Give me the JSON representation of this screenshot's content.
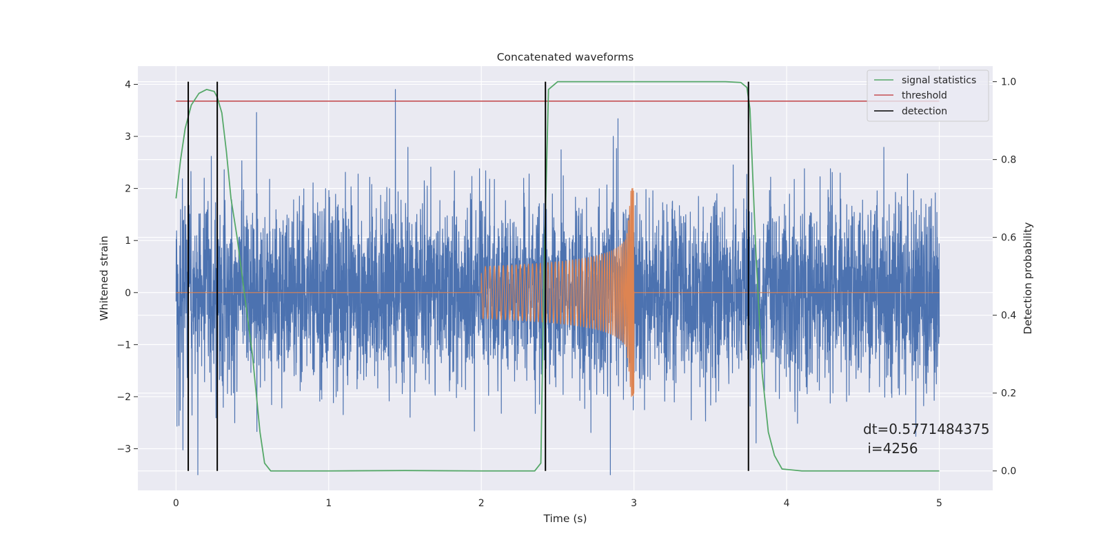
{
  "chart_data": {
    "type": "line",
    "title": "Concatenated waveforms",
    "xlabel": "Time (s)",
    "ylabel": "Whitened strain",
    "y2label": "Detection probability",
    "xlim": [
      -0.25,
      5.35
    ],
    "ylim": [
      -3.8,
      4.35
    ],
    "y2lim": [
      -0.05,
      1.04
    ],
    "x_ticks": [
      0,
      1,
      2,
      3,
      4,
      5
    ],
    "y_ticks": [
      -3,
      -2,
      -1,
      0,
      1,
      2,
      3,
      4
    ],
    "y2_ticks": [
      0.0,
      0.2,
      0.4,
      0.6,
      0.8,
      1.0
    ],
    "x_tick_labels": [
      "0",
      "1",
      "2",
      "3",
      "4",
      "5"
    ],
    "y_tick_labels": [
      "−3",
      "−2",
      "−1",
      "0",
      "1",
      "2",
      "3",
      "4"
    ],
    "y2_tick_labels": [
      "0.0",
      "0.2",
      "0.4",
      "0.6",
      "0.8",
      "1.0"
    ],
    "grid": true,
    "legend_position": "top-right",
    "legend": [
      {
        "name": "signal statistics",
        "color": "#55a868"
      },
      {
        "name": "threshold",
        "color": "#c44e52"
      },
      {
        "name": "detection",
        "color": "#000000"
      }
    ],
    "annotation": {
      "dt": "dt=0.5771484375",
      "i": " i=4256"
    },
    "series": [
      {
        "key": "noise",
        "color": "#4c72b0",
        "x_range": [
          0,
          5
        ],
        "typical_amplitude": 1.6,
        "y_min": -3.5,
        "y_max": 4.0
      },
      {
        "key": "waveform",
        "color": "#dd8452",
        "x_range": [
          0,
          5
        ],
        "chirp_start": 2.0,
        "chirp_end": 3.0,
        "start_amplitude": 0.5,
        "peak_amplitude": 2.0
      },
      {
        "name": "signal statistics",
        "color": "#55a868",
        "axis": "right",
        "points": [
          [
            0.0,
            0.7
          ],
          [
            0.03,
            0.8
          ],
          [
            0.06,
            0.88
          ],
          [
            0.1,
            0.94
          ],
          [
            0.15,
            0.97
          ],
          [
            0.2,
            0.98
          ],
          [
            0.25,
            0.975
          ],
          [
            0.27,
            0.96
          ],
          [
            0.3,
            0.92
          ],
          [
            0.33,
            0.82
          ],
          [
            0.36,
            0.7
          ],
          [
            0.4,
            0.6
          ],
          [
            0.45,
            0.45
          ],
          [
            0.5,
            0.3
          ],
          [
            0.55,
            0.1
          ],
          [
            0.58,
            0.02
          ],
          [
            0.62,
            0.0
          ],
          [
            1.0,
            0.0
          ],
          [
            1.5,
            0.001
          ],
          [
            2.0,
            0.0
          ],
          [
            2.35,
            0.0
          ],
          [
            2.39,
            0.02
          ],
          [
            2.41,
            0.5
          ],
          [
            2.44,
            0.98
          ],
          [
            2.5,
            1.0
          ],
          [
            3.0,
            1.0
          ],
          [
            3.6,
            1.0
          ],
          [
            3.7,
            0.998
          ],
          [
            3.74,
            0.985
          ],
          [
            3.76,
            0.93
          ],
          [
            3.8,
            0.55
          ],
          [
            3.84,
            0.25
          ],
          [
            3.88,
            0.1
          ],
          [
            3.92,
            0.04
          ],
          [
            3.97,
            0.005
          ],
          [
            4.1,
            0.0
          ],
          [
            5.0,
            0.0
          ]
        ]
      },
      {
        "name": "threshold",
        "color": "#c44e52",
        "axis": "right",
        "x": [
          0,
          5
        ],
        "y": 0.95
      },
      {
        "name": "detection",
        "color": "#000000",
        "axis": "right",
        "x_values": [
          0.08,
          0.27,
          2.42,
          3.75
        ],
        "y_range": [
          0.0,
          1.0
        ]
      }
    ]
  }
}
